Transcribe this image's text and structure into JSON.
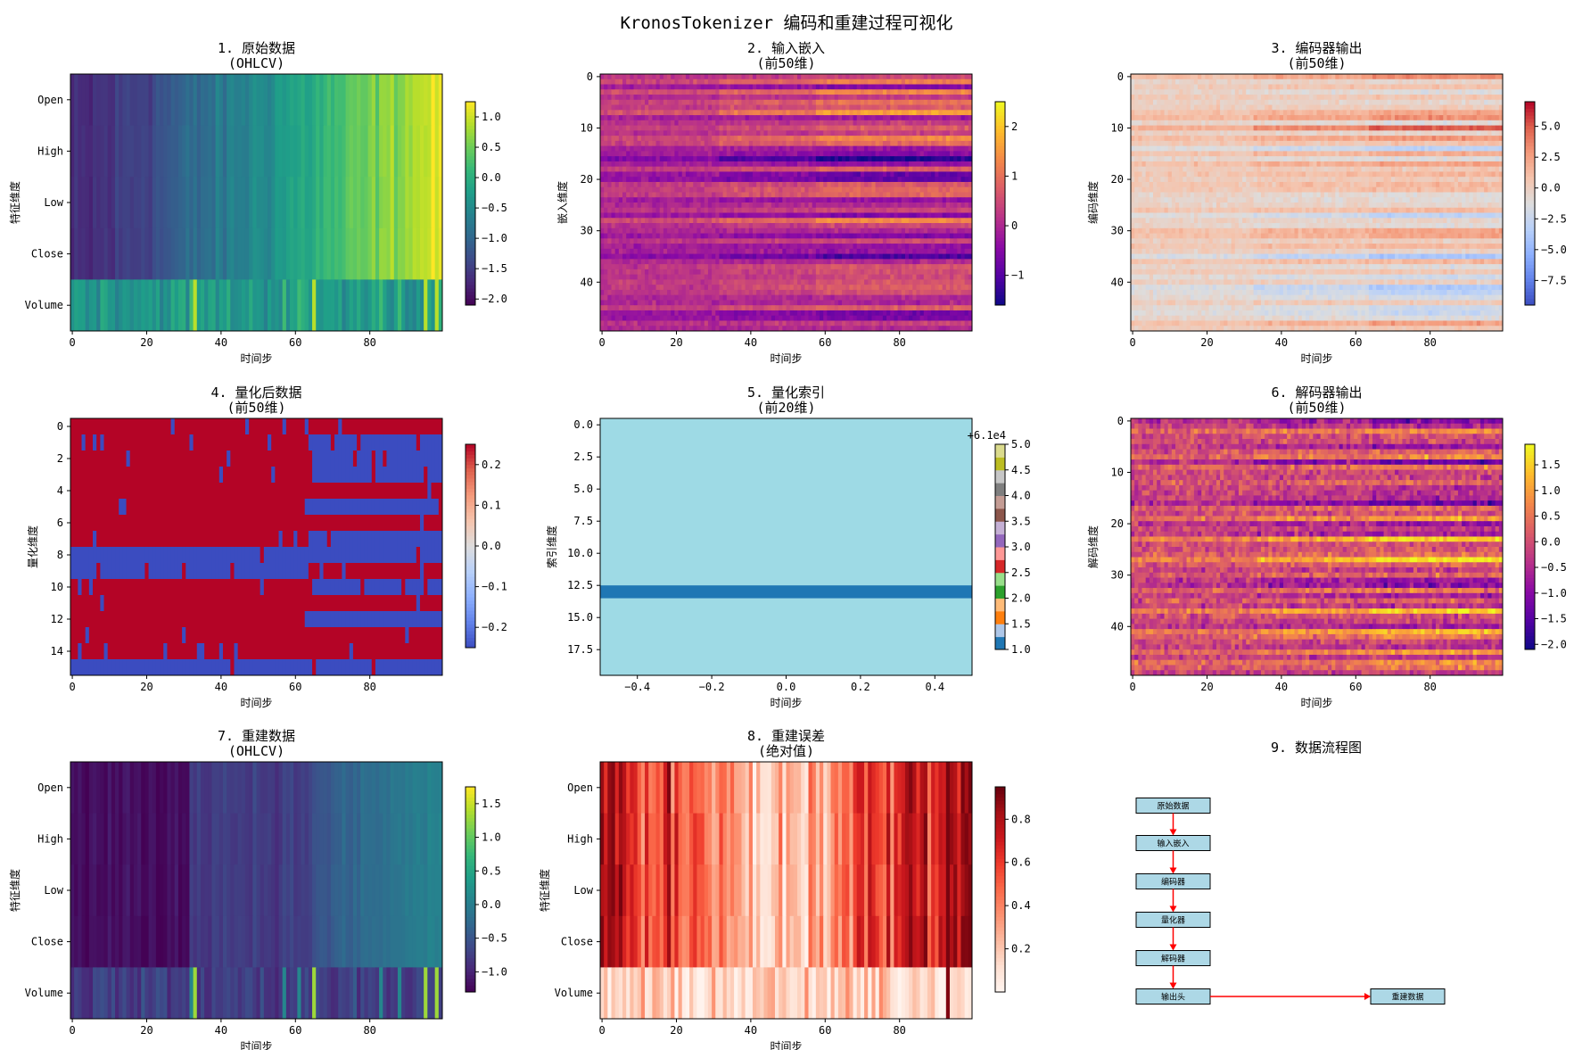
{
  "figure_title": "KronosTokenizer 编码和重建过程可视化",
  "colors": {
    "flow_box_fill": "#add8e6",
    "arrow": "#ff0000"
  },
  "chart_data": [
    {
      "id": "raw",
      "type": "heatmap",
      "title": "1. 原始数据",
      "subtitle": "(OHLCV)",
      "xlabel": "时间步",
      "ylabel": "特征维度",
      "colormap": "viridis",
      "clim": [
        -2.1,
        1.25
      ],
      "x_ticks": [
        0,
        20,
        40,
        60,
        80
      ],
      "x_range": [
        0,
        100
      ],
      "rows": [
        "Open",
        "High",
        "Low",
        "Close",
        "Volume"
      ],
      "colorbar_ticks": [
        "1.0",
        "0.5",
        "0.0",
        "−0.5",
        "−1.0",
        "−1.5",
        "−2.0"
      ]
    },
    {
      "id": "embed",
      "type": "heatmap",
      "title": "2. 输入嵌入",
      "subtitle": "(前50维)",
      "xlabel": "时间步",
      "ylabel": "嵌入维度",
      "colormap": "plasma",
      "clim": [
        -1.6,
        2.5
      ],
      "x_ticks": [
        0,
        20,
        40,
        60,
        80
      ],
      "x_range": [
        0,
        100
      ],
      "y_ticks": [
        0,
        10,
        20,
        30,
        40
      ],
      "n_rows": 50,
      "colorbar_ticks": [
        "2",
        "1",
        "0",
        "−1"
      ]
    },
    {
      "id": "encoder",
      "type": "heatmap",
      "title": "3. 编码器输出",
      "subtitle": "(前50维)",
      "xlabel": "时间步",
      "ylabel": "编码维度",
      "colormap": "coolwarm",
      "clim": [
        -9.5,
        7.0
      ],
      "x_ticks": [
        0,
        20,
        40,
        60,
        80
      ],
      "x_range": [
        0,
        100
      ],
      "y_ticks": [
        0,
        10,
        20,
        30,
        40
      ],
      "n_rows": 50,
      "colorbar_ticks": [
        "5.0",
        "2.5",
        "0.0",
        "−2.5",
        "−5.0",
        "−7.5"
      ]
    },
    {
      "id": "quant",
      "type": "heatmap",
      "title": "4. 量化后数据",
      "subtitle": "(前50维)",
      "xlabel": "时间步",
      "ylabel": "量化维度",
      "colormap": "coolwarm",
      "clim": [
        -0.25,
        0.25
      ],
      "values_set": [
        -0.25,
        0.25
      ],
      "x_ticks": [
        0,
        20,
        40,
        60,
        80
      ],
      "x_range": [
        0,
        100
      ],
      "y_ticks": [
        0,
        2,
        4,
        6,
        8,
        10,
        12,
        14
      ],
      "n_rows": 16,
      "colorbar_ticks": [
        "0.2",
        "0.1",
        "0.0",
        "−0.1",
        "−0.2"
      ]
    },
    {
      "id": "index",
      "type": "heatmap",
      "title": "5. 量化索引",
      "subtitle": "(前20维)",
      "xlabel": "时间步",
      "ylabel": "索引维度",
      "colormap": "tab20",
      "x_ticks": [
        "−0.4",
        "−0.2",
        "0.0",
        "0.2",
        "0.4"
      ],
      "x_range": [
        -0.5,
        0.5
      ],
      "y_ticks": [
        "0.0",
        "2.5",
        "5.0",
        "7.5",
        "10.0",
        "12.5",
        "15.0",
        "17.5"
      ],
      "y_range": [
        -0.5,
        19.5
      ],
      "highlight_row": 13,
      "colorbar_ticks": [
        "5.0",
        "4.5",
        "4.0",
        "3.5",
        "3.0",
        "2.5",
        "2.0",
        "1.5",
        "1.0"
      ],
      "colorbar_offset": "+6.1e4"
    },
    {
      "id": "decoder",
      "type": "heatmap",
      "title": "6. 解码器输出",
      "subtitle": "(前50维)",
      "xlabel": "时间步",
      "ylabel": "解码维度",
      "colormap": "plasma",
      "clim": [
        -2.1,
        1.9
      ],
      "x_ticks": [
        0,
        20,
        40,
        60,
        80
      ],
      "x_range": [
        0,
        100
      ],
      "y_ticks": [
        0,
        10,
        20,
        30,
        40
      ],
      "n_rows": 50,
      "colorbar_ticks": [
        "1.5",
        "1.0",
        "0.5",
        "0.0",
        "−0.5",
        "−1.0",
        "−1.5",
        "−2.0"
      ]
    },
    {
      "id": "recon",
      "type": "heatmap",
      "title": "7. 重建数据",
      "subtitle": "(OHLCV)",
      "xlabel": "时间步",
      "ylabel": "特征维度",
      "colormap": "viridis",
      "clim": [
        -1.3,
        1.75
      ],
      "x_ticks": [
        0,
        20,
        40,
        60,
        80
      ],
      "x_range": [
        0,
        100
      ],
      "rows": [
        "Open",
        "High",
        "Low",
        "Close",
        "Volume"
      ],
      "colorbar_ticks": [
        "1.5",
        "1.0",
        "0.5",
        "0.0",
        "−0.5",
        "−1.0"
      ]
    },
    {
      "id": "error",
      "type": "heatmap",
      "title": "8. 重建误差",
      "subtitle": "(绝对值)",
      "xlabel": "时间步",
      "ylabel": "特征维度",
      "colormap": "Reds",
      "clim": [
        0.0,
        0.95
      ],
      "x_ticks": [
        0,
        20,
        40,
        60,
        80
      ],
      "x_range": [
        0,
        100
      ],
      "rows": [
        "Open",
        "High",
        "Low",
        "Close",
        "Volume"
      ],
      "colorbar_ticks": [
        "0.8",
        "0.6",
        "0.4",
        "0.2"
      ]
    }
  ],
  "flowchart": {
    "title": "9. 数据流程图",
    "steps": [
      "原始数据",
      "输入嵌入",
      "编码器",
      "量化器",
      "解码器",
      "输出头"
    ],
    "final": "重建数据"
  }
}
